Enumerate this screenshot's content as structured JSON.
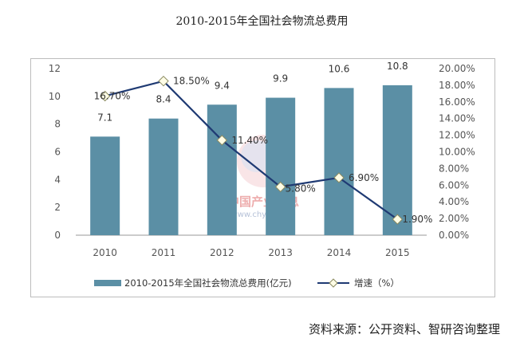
{
  "title": "2010-2015年全国社会物流总费用",
  "source": "资料来源：公开资料、智研咨询整理",
  "watermark": {
    "cn": "中国产业信息",
    "url": "www.chyxx.com"
  },
  "colors": {
    "bar": "#5b8fa5",
    "line": "#1f3a73",
    "marker_fill": "#fffde6",
    "marker_stroke": "#8a8a60"
  },
  "chart_data": {
    "type": "bar+line",
    "categories": [
      "2010",
      "2011",
      "2012",
      "2013",
      "2014",
      "2015"
    ],
    "series": [
      {
        "name": "2010-2015年全国社会物流总费用(亿元)",
        "type": "bar",
        "axis": "left",
        "values": [
          7.1,
          8.4,
          9.4,
          9.9,
          10.6,
          10.8
        ],
        "labels": [
          "7.1",
          "8.4",
          "9.4",
          "9.9",
          "10.6",
          "10.8"
        ]
      },
      {
        "name": "增速（%）",
        "type": "line",
        "axis": "right",
        "values": [
          16.7,
          18.5,
          11.4,
          5.8,
          6.9,
          1.9
        ],
        "labels": [
          "16.70%",
          "18.50%",
          "11.40%",
          "5.80%",
          "6.90%",
          "1.90%"
        ]
      }
    ],
    "y_left": {
      "min": 0,
      "max": 12,
      "ticks": [
        "0",
        "2",
        "4",
        "6",
        "8",
        "10",
        "12"
      ]
    },
    "y_right": {
      "min": 0,
      "max": 20,
      "ticks": [
        "0.00%",
        "2.00%",
        "4.00%",
        "6.00%",
        "8.00%",
        "10.00%",
        "12.00%",
        "14.00%",
        "16.00%",
        "18.00%",
        "20.00%"
      ]
    },
    "legend": {
      "position": "bottom",
      "items": [
        "2010-2015年全国社会物流总费用(亿元)",
        "增速（%）"
      ]
    },
    "grid": false
  }
}
